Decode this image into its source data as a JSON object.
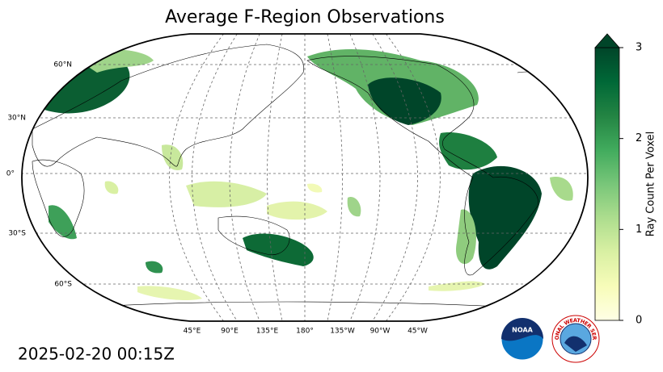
{
  "title": "Average F-Region Observations",
  "timestamp": "2025-02-20 00:15Z",
  "map": {
    "lat_labels": [
      "60°N",
      "30°N",
      "0°",
      "30°S",
      "60°S"
    ],
    "lon_labels": [
      "45°E",
      "90°E",
      "135°E",
      "180°",
      "135°W",
      "90°W",
      "45°W"
    ]
  },
  "colorbar": {
    "label": "Ray Count Per Voxel",
    "lim": [
      0,
      3
    ],
    "ticks": [
      0,
      1,
      2,
      3
    ],
    "extend": "max"
  },
  "logos": {
    "noaa": "NOAA",
    "nws": "NATIONAL WEATHER SERVICE"
  }
}
